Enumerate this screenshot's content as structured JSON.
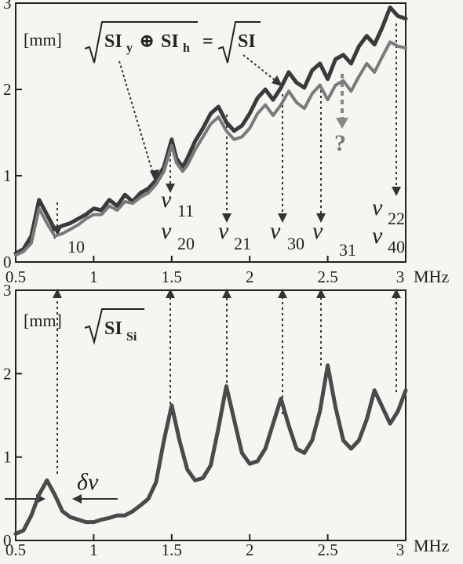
{
  "chart_data": [
    {
      "type": "line",
      "xunit": "MHz",
      "yunit": "[mm]",
      "xlim": [
        0.5,
        3.0
      ],
      "ylim": [
        0,
        3
      ],
      "xticks": [
        "0.5",
        "1",
        "1.5",
        "2",
        "2.5",
        "3"
      ],
      "yticks": [
        "0",
        "1",
        "2",
        "3"
      ],
      "formula": {
        "radical_left": "SI",
        "sub_left1": "y",
        "op": "⊕",
        "sub_left2": "h",
        "equals": "=",
        "radical_right": "SI"
      },
      "series": [
        {
          "color": "#3a3a3a",
          "points": [
            [
              0.5,
              0.1
            ],
            [
              0.55,
              0.15
            ],
            [
              0.6,
              0.3
            ],
            [
              0.65,
              0.72
            ],
            [
              0.7,
              0.55
            ],
            [
              0.75,
              0.38
            ],
            [
              0.8,
              0.42
            ],
            [
              0.85,
              0.45
            ],
            [
              0.9,
              0.5
            ],
            [
              0.95,
              0.55
            ],
            [
              1.0,
              0.62
            ],
            [
              1.05,
              0.6
            ],
            [
              1.1,
              0.72
            ],
            [
              1.15,
              0.65
            ],
            [
              1.2,
              0.78
            ],
            [
              1.25,
              0.7
            ],
            [
              1.3,
              0.8
            ],
            [
              1.35,
              0.85
            ],
            [
              1.4,
              0.95
            ],
            [
              1.45,
              1.1
            ],
            [
              1.5,
              1.42
            ],
            [
              1.53,
              1.2
            ],
            [
              1.57,
              1.1
            ],
            [
              1.6,
              1.2
            ],
            [
              1.65,
              1.4
            ],
            [
              1.7,
              1.55
            ],
            [
              1.75,
              1.72
            ],
            [
              1.8,
              1.8
            ],
            [
              1.85,
              1.62
            ],
            [
              1.9,
              1.52
            ],
            [
              1.95,
              1.58
            ],
            [
              2.0,
              1.72
            ],
            [
              2.05,
              1.9
            ],
            [
              2.1,
              2.0
            ],
            [
              2.15,
              1.88
            ],
            [
              2.2,
              2.02
            ],
            [
              2.25,
              2.2
            ],
            [
              2.3,
              2.08
            ],
            [
              2.35,
              2.02
            ],
            [
              2.4,
              2.22
            ],
            [
              2.45,
              2.3
            ],
            [
              2.5,
              2.12
            ],
            [
              2.55,
              2.35
            ],
            [
              2.6,
              2.4
            ],
            [
              2.65,
              2.3
            ],
            [
              2.7,
              2.5
            ],
            [
              2.75,
              2.62
            ],
            [
              2.8,
              2.52
            ],
            [
              2.85,
              2.72
            ],
            [
              2.9,
              2.95
            ],
            [
              2.95,
              2.85
            ],
            [
              3.0,
              2.82
            ]
          ]
        },
        {
          "color": "#7a7a7a",
          "points": [
            [
              0.5,
              0.08
            ],
            [
              0.55,
              0.12
            ],
            [
              0.6,
              0.22
            ],
            [
              0.65,
              0.62
            ],
            [
              0.7,
              0.45
            ],
            [
              0.75,
              0.3
            ],
            [
              0.8,
              0.33
            ],
            [
              0.85,
              0.38
            ],
            [
              0.9,
              0.43
            ],
            [
              0.95,
              0.5
            ],
            [
              1.0,
              0.55
            ],
            [
              1.05,
              0.55
            ],
            [
              1.1,
              0.65
            ],
            [
              1.15,
              0.6
            ],
            [
              1.2,
              0.7
            ],
            [
              1.25,
              0.68
            ],
            [
              1.3,
              0.75
            ],
            [
              1.35,
              0.8
            ],
            [
              1.4,
              0.9
            ],
            [
              1.45,
              1.05
            ],
            [
              1.5,
              1.35
            ],
            [
              1.53,
              1.15
            ],
            [
              1.57,
              1.05
            ],
            [
              1.6,
              1.12
            ],
            [
              1.65,
              1.3
            ],
            [
              1.7,
              1.45
            ],
            [
              1.75,
              1.6
            ],
            [
              1.8,
              1.68
            ],
            [
              1.85,
              1.52
            ],
            [
              1.9,
              1.42
            ],
            [
              1.95,
              1.45
            ],
            [
              2.0,
              1.55
            ],
            [
              2.05,
              1.72
            ],
            [
              2.1,
              1.82
            ],
            [
              2.15,
              1.7
            ],
            [
              2.2,
              1.82
            ],
            [
              2.25,
              1.98
            ],
            [
              2.3,
              1.85
            ],
            [
              2.35,
              1.78
            ],
            [
              2.4,
              1.95
            ],
            [
              2.45,
              2.05
            ],
            [
              2.5,
              1.88
            ],
            [
              2.55,
              2.05
            ],
            [
              2.6,
              2.1
            ],
            [
              2.65,
              1.98
            ],
            [
              2.7,
              2.15
            ],
            [
              2.75,
              2.3
            ],
            [
              2.8,
              2.2
            ],
            [
              2.85,
              2.38
            ],
            [
              2.9,
              2.55
            ],
            [
              2.95,
              2.5
            ],
            [
              3.0,
              2.48
            ]
          ]
        }
      ],
      "annotations": [
        {
          "nu": "ν",
          "sub": "10"
        },
        {
          "nu": "ν",
          "sub": "11"
        },
        {
          "nu": "ν",
          "sub": "20"
        },
        {
          "nu": "ν",
          "sub": "21"
        },
        {
          "nu": "ν",
          "sub": "30"
        },
        {
          "nu": "ν",
          "sub": "31"
        },
        {
          "nu": "ν",
          "sub": "22"
        },
        {
          "nu": "ν",
          "sub": "40"
        }
      ],
      "question_mark": "?"
    },
    {
      "type": "line",
      "xunit": "MHz",
      "yunit": "[mm]",
      "xlim": [
        0.5,
        3.0
      ],
      "ylim": [
        0,
        3
      ],
      "xticks": [
        "0.5",
        "1",
        "1.5",
        "2",
        "2.5",
        "3"
      ],
      "yticks": [
        "0",
        "1",
        "2",
        "3"
      ],
      "formula": {
        "radical": "SI",
        "sub": "Si"
      },
      "width_label": "δν",
      "series": [
        {
          "color": "#4a4a4a",
          "points": [
            [
              0.5,
              0.08
            ],
            [
              0.55,
              0.12
            ],
            [
              0.6,
              0.3
            ],
            [
              0.65,
              0.55
            ],
            [
              0.7,
              0.72
            ],
            [
              0.75,
              0.55
            ],
            [
              0.8,
              0.35
            ],
            [
              0.85,
              0.28
            ],
            [
              0.9,
              0.25
            ],
            [
              0.95,
              0.22
            ],
            [
              1.0,
              0.22
            ],
            [
              1.05,
              0.25
            ],
            [
              1.1,
              0.27
            ],
            [
              1.15,
              0.3
            ],
            [
              1.2,
              0.3
            ],
            [
              1.25,
              0.35
            ],
            [
              1.3,
              0.42
            ],
            [
              1.35,
              0.5
            ],
            [
              1.4,
              0.7
            ],
            [
              1.45,
              1.2
            ],
            [
              1.5,
              1.62
            ],
            [
              1.55,
              1.2
            ],
            [
              1.6,
              0.85
            ],
            [
              1.65,
              0.72
            ],
            [
              1.7,
              0.75
            ],
            [
              1.75,
              0.9
            ],
            [
              1.8,
              1.35
            ],
            [
              1.85,
              1.85
            ],
            [
              1.9,
              1.45
            ],
            [
              1.95,
              1.05
            ],
            [
              2.0,
              0.92
            ],
            [
              2.05,
              0.95
            ],
            [
              2.1,
              1.1
            ],
            [
              2.15,
              1.4
            ],
            [
              2.2,
              1.7
            ],
            [
              2.25,
              1.38
            ],
            [
              2.3,
              1.1
            ],
            [
              2.35,
              1.05
            ],
            [
              2.4,
              1.2
            ],
            [
              2.45,
              1.55
            ],
            [
              2.5,
              2.1
            ],
            [
              2.55,
              1.6
            ],
            [
              2.6,
              1.2
            ],
            [
              2.65,
              1.1
            ],
            [
              2.7,
              1.2
            ],
            [
              2.75,
              1.45
            ],
            [
              2.8,
              1.8
            ],
            [
              2.85,
              1.6
            ],
            [
              2.9,
              1.4
            ],
            [
              2.95,
              1.55
            ],
            [
              3.0,
              1.8
            ]
          ]
        }
      ]
    }
  ]
}
